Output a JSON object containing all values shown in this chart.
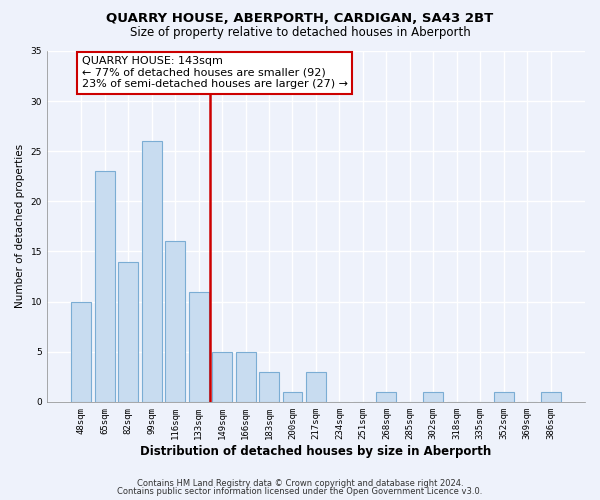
{
  "title": "QUARRY HOUSE, ABERPORTH, CARDIGAN, SA43 2BT",
  "subtitle": "Size of property relative to detached houses in Aberporth",
  "xlabel": "Distribution of detached houses by size in Aberporth",
  "ylabel": "Number of detached properties",
  "bin_labels": [
    "48sqm",
    "65sqm",
    "82sqm",
    "99sqm",
    "116sqm",
    "133sqm",
    "149sqm",
    "166sqm",
    "183sqm",
    "200sqm",
    "217sqm",
    "234sqm",
    "251sqm",
    "268sqm",
    "285sqm",
    "302sqm",
    "318sqm",
    "335sqm",
    "352sqm",
    "369sqm",
    "386sqm"
  ],
  "bar_heights": [
    10,
    23,
    14,
    26,
    16,
    11,
    5,
    5,
    3,
    1,
    3,
    0,
    0,
    1,
    0,
    1,
    0,
    0,
    1,
    0,
    1
  ],
  "bar_color": "#c8dcf0",
  "bar_edge_color": "#7badd4",
  "vline_x_index": 6,
  "vline_color": "#cc0000",
  "annotation_line1": "QUARRY HOUSE: 143sqm",
  "annotation_line2": "← 77% of detached houses are smaller (92)",
  "annotation_line3": "23% of semi-detached houses are larger (27) →",
  "annotation_box_color": "#ffffff",
  "annotation_box_edge": "#cc0000",
  "ylim": [
    0,
    35
  ],
  "yticks": [
    0,
    5,
    10,
    15,
    20,
    25,
    30,
    35
  ],
  "footer_line1": "Contains HM Land Registry data © Crown copyright and database right 2024.",
  "footer_line2": "Contains public sector information licensed under the Open Government Licence v3.0.",
  "background_color": "#eef2fb",
  "grid_color": "#ffffff",
  "title_fontsize": 9.5,
  "subtitle_fontsize": 8.5,
  "xlabel_fontsize": 8.5,
  "ylabel_fontsize": 7.5,
  "tick_fontsize": 6.5,
  "annotation_fontsize": 8,
  "footer_fontsize": 6
}
